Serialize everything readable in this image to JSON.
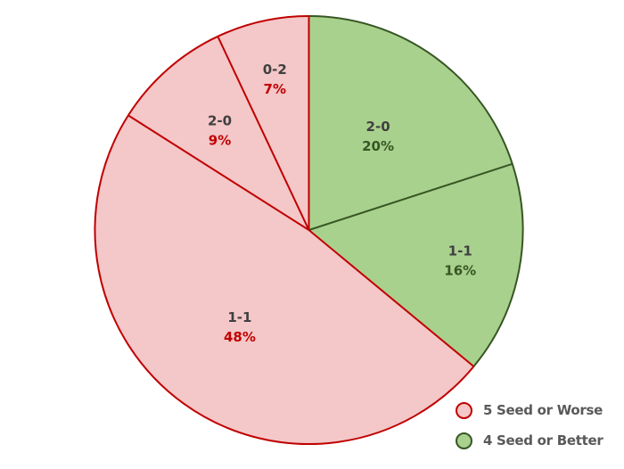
{
  "chart_data": {
    "type": "pie",
    "title": "",
    "start_angle_deg": 0,
    "direction": "clockwise",
    "series": [
      {
        "name": "4 Seed or Better",
        "fill": "#a9d18e",
        "stroke": "#375623",
        "label_color": "#375623"
      },
      {
        "name": "5 Seed or Worse",
        "fill": "#f4c7c8",
        "stroke": "#c00000",
        "label_color": "#c00000"
      }
    ],
    "slices": [
      {
        "label": "2-0",
        "value": 20,
        "percent_label": "20%",
        "group": "4 Seed or Better"
      },
      {
        "label": "1-1",
        "value": 16,
        "percent_label": "16%",
        "group": "4 Seed or Better"
      },
      {
        "label": "1-1",
        "value": 48,
        "percent_label": "48%",
        "group": "5 Seed or Worse"
      },
      {
        "label": "2-0",
        "value": 9,
        "percent_label": "9%",
        "group": "5 Seed or Worse"
      },
      {
        "label": "0-2",
        "value": 7,
        "percent_label": "7%",
        "group": "5 Seed or Worse"
      }
    ],
    "legend_position": "bottom-right"
  },
  "legend": {
    "items": [
      {
        "label": "5 Seed or Worse",
        "fill": "#f4c7c8",
        "stroke": "#c00000"
      },
      {
        "label": "4 Seed or Better",
        "fill": "#a9d18e",
        "stroke": "#375623"
      }
    ]
  },
  "colors": {
    "category_text": "#404040"
  }
}
